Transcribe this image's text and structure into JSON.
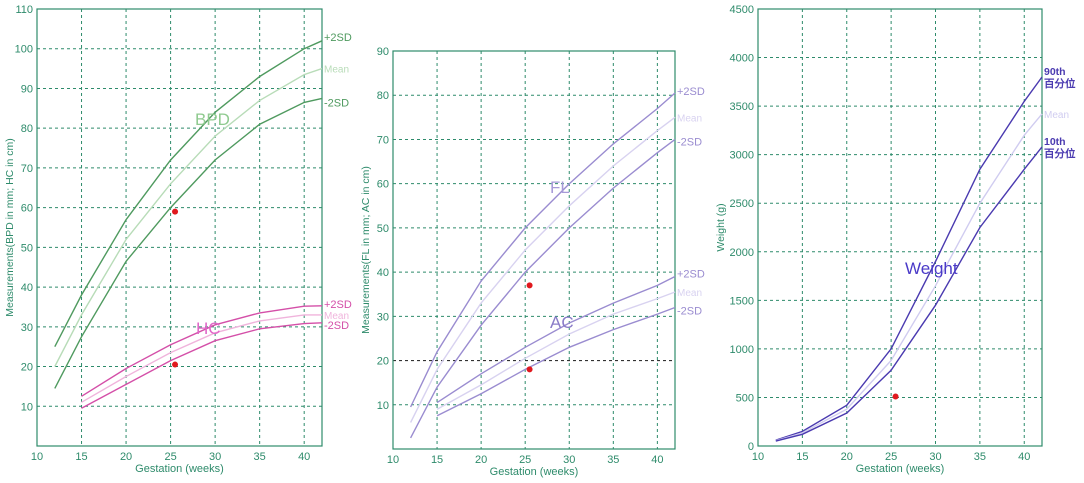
{
  "chart_data": [
    {
      "type": "line",
      "xlabel": "Gestation (weeks)",
      "ylabel": "Measurements(BPD in mm; HC in cm)",
      "xlim": [
        10,
        42
      ],
      "ylim": [
        0,
        110
      ],
      "xticks": [
        10,
        15,
        20,
        25,
        30,
        35,
        40
      ],
      "yticks": [
        10,
        20,
        30,
        40,
        50,
        60,
        70,
        80,
        90,
        100,
        110
      ],
      "grid": true,
      "axis_color": "#2e8b6b",
      "groups": [
        {
          "label": "BPD",
          "label_color": "#8fca8f",
          "series": [
            {
              "name": "+2SD",
              "color": "#4f9a5f",
              "x": [
                12,
                15,
                20,
                25,
                30,
                35,
                40,
                42
              ],
              "y": [
                25,
                38,
                57,
                72,
                84,
                93,
                100,
                102
              ]
            },
            {
              "name": "Mean",
              "color": "#b8dcb8",
              "x": [
                12,
                15,
                20,
                25,
                30,
                35,
                40,
                42
              ],
              "y": [
                20,
                33,
                52,
                66,
                78,
                87,
                93.5,
                95
              ]
            },
            {
              "name": "-2SD",
              "color": "#4f9a5f",
              "x": [
                12,
                15,
                20,
                25,
                30,
                35,
                40,
                42
              ],
              "y": [
                14.5,
                27.5,
                46.5,
                60,
                72,
                81,
                86.5,
                87.5
              ]
            }
          ],
          "points": [
            {
              "x": 25.5,
              "y": 59,
              "color": "#e0191e"
            }
          ]
        },
        {
          "label": "HC",
          "label_color": "#e066c8",
          "series": [
            {
              "name": "+2SD",
              "color": "#d44fa8",
              "x": [
                15,
                20,
                25,
                30,
                35,
                40,
                42
              ],
              "y": [
                12.5,
                19.5,
                25.5,
                30.5,
                33.5,
                35.2,
                35.3
              ]
            },
            {
              "name": "Mean",
              "color": "#f0b4dc",
              "x": [
                15,
                20,
                25,
                30,
                35,
                40,
                42
              ],
              "y": [
                11,
                17.5,
                23.5,
                28.5,
                31.5,
                33,
                33
              ]
            },
            {
              "name": "-2SD",
              "color": "#d44fa8",
              "x": [
                15,
                20,
                25,
                30,
                35,
                40,
                42
              ],
              "y": [
                9.5,
                15.5,
                21.5,
                26.5,
                29.5,
                30.8,
                31
              ]
            }
          ],
          "points": [
            {
              "x": 25.5,
              "y": 20.5,
              "color": "#e0191e"
            }
          ]
        }
      ]
    },
    {
      "type": "line",
      "xlabel": "Gestation (weeks)",
      "ylabel": "Measurements(FL in mm; AC in cm)",
      "xlim": [
        10,
        42
      ],
      "ylim": [
        0,
        90
      ],
      "xticks": [
        10,
        15,
        20,
        25,
        30,
        35,
        40
      ],
      "yticks": [
        10,
        20,
        30,
        40,
        50,
        60,
        70,
        80,
        90
      ],
      "grid": true,
      "axis_color": "#2e8b6b",
      "groups": [
        {
          "label": "FL",
          "label_color": "#a79ad8",
          "series": [
            {
              "name": "+2SD",
              "color": "#9a8cd0",
              "x": [
                12,
                15,
                20,
                25,
                30,
                35,
                40,
                42
              ],
              "y": [
                9.5,
                22,
                38,
                50,
                60,
                69,
                77,
                80.5
              ]
            },
            {
              "name": "Mean",
              "color": "#d8d2f0",
              "x": [
                12,
                15,
                20,
                25,
                30,
                35,
                40,
                42
              ],
              "y": [
                6,
                18,
                33,
                45,
                55,
                64,
                72,
                75
              ]
            },
            {
              "name": "-2SD",
              "color": "#9a8cd0",
              "x": [
                12,
                15,
                20,
                25,
                30,
                35,
                40,
                42
              ],
              "y": [
                2.5,
                14,
                28,
                40,
                50,
                59,
                67,
                70
              ]
            }
          ],
          "points": [
            {
              "x": 25.5,
              "y": 37,
              "color": "#e0191e"
            }
          ]
        },
        {
          "label": "AC",
          "label_color": "#8a7cc8",
          "series": [
            {
              "name": "+2SD",
              "color": "#9a8cd0",
              "x": [
                15,
                20,
                25,
                30,
                35,
                40,
                42
              ],
              "y": [
                10.5,
                17,
                23,
                28.5,
                33,
                37,
                39
              ]
            },
            {
              "name": "Mean",
              "color": "#d8d2f0",
              "x": [
                15,
                20,
                25,
                30,
                35,
                40,
                42
              ],
              "y": [
                9,
                14.5,
                20.5,
                26,
                30.5,
                34,
                35.5
              ]
            },
            {
              "name": "-2SD",
              "color": "#9a8cd0",
              "x": [
                15,
                20,
                25,
                30,
                35,
                40,
                42
              ],
              "y": [
                7.5,
                12.5,
                18,
                23,
                27,
                30.5,
                32
              ]
            }
          ],
          "points": [
            {
              "x": 25.5,
              "y": 18,
              "color": "#e0191e"
            }
          ]
        }
      ]
    },
    {
      "type": "line",
      "xlabel": "Gestation (weeks)",
      "ylabel": "Weight (g)",
      "xlim": [
        10,
        42
      ],
      "ylim": [
        0,
        4500
      ],
      "xticks": [
        10,
        15,
        20,
        25,
        30,
        35,
        40
      ],
      "yticks": [
        0,
        500,
        1000,
        1500,
        2000,
        2500,
        3000,
        3500,
        4000,
        4500
      ],
      "grid": true,
      "axis_color": "#2e8b6b",
      "groups": [
        {
          "label": "Weight",
          "label_color": "#4a3ac8",
          "series": [
            {
              "name": "90th 百分位",
              "color": "#4a3ab0",
              "x": [
                12,
                15,
                20,
                25,
                30,
                35,
                40,
                42
              ],
              "y": [
                60,
                150,
                420,
                1000,
                1900,
                2850,
                3550,
                3800
              ]
            },
            {
              "name": "Mean",
              "color": "#d0ccf0",
              "x": [
                12,
                15,
                20,
                25,
                30,
                35,
                40,
                42
              ],
              "y": [
                55,
                135,
                380,
                880,
                1650,
                2500,
                3200,
                3420
              ]
            },
            {
              "name": "10th 百分位",
              "color": "#4a3ab0",
              "x": [
                12,
                15,
                20,
                25,
                30,
                35,
                40,
                42
              ],
              "y": [
                50,
                120,
                340,
                780,
                1450,
                2250,
                2850,
                3080
              ]
            }
          ],
          "points": [
            {
              "x": 25.5,
              "y": 510,
              "color": "#e0191e"
            }
          ]
        }
      ]
    }
  ]
}
